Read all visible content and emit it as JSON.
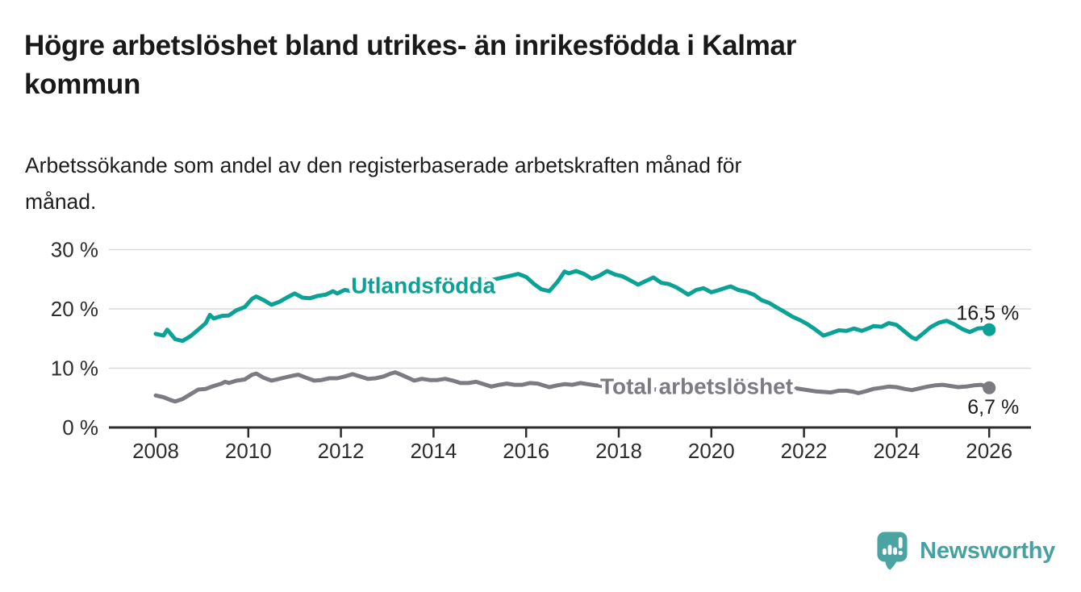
{
  "header": {
    "title_lines": [
      "Högre arbetslöshet bland utrikes- än inrikesfödda i Kalmar",
      "kommun"
    ],
    "subtitle_lines": [
      "Arbetssökande som andel av den registerbaserade arbetskraften månad för",
      "månad."
    ]
  },
  "branding": {
    "logo_text": "Newsworthy",
    "logo_color": "#4ba4a2"
  },
  "chart_data": {
    "type": "line",
    "title": "Högre arbetslöshet bland utrikes- än inrikesfödda i Kalmar kommun",
    "subtitle": "Arbetssökande som andel av den registerbaserade arbetskraften månad för månad.",
    "grid": "horizontal-only",
    "legend_position": "inline-on-line",
    "x_axis": {
      "ticks": [
        2008,
        2010,
        2012,
        2014,
        2016,
        2018,
        2020,
        2022,
        2024,
        2026
      ],
      "tick_labels": [
        "2008",
        "2010",
        "2012",
        "2014",
        "2016",
        "2018",
        "2020",
        "2022",
        "2024",
        "2026"
      ],
      "range": [
        2007.0,
        2026.9
      ]
    },
    "y_axis": {
      "unit": "%",
      "ticks": [
        0,
        10,
        20,
        30
      ],
      "tick_labels": [
        "0 %",
        "10 %",
        "20 %",
        "30 %"
      ],
      "range": [
        0,
        32
      ]
    },
    "series": [
      {
        "id": "utlandsfodda",
        "name": "Utlandsfödda",
        "color": "#0aa294",
        "end_value": 16.5,
        "end_label": "16,5 %",
        "end_label_dy": -12,
        "label_at": [
          2012.22,
          23.9
        ],
        "points": [
          [
            2008.0,
            15.8
          ],
          [
            2008.17,
            15.5
          ],
          [
            2008.25,
            16.5
          ],
          [
            2008.42,
            14.9
          ],
          [
            2008.58,
            14.6
          ],
          [
            2008.75,
            15.4
          ],
          [
            2008.92,
            16.5
          ],
          [
            2009.08,
            17.6
          ],
          [
            2009.17,
            19.0
          ],
          [
            2009.25,
            18.4
          ],
          [
            2009.42,
            18.8
          ],
          [
            2009.58,
            18.9
          ],
          [
            2009.75,
            19.8
          ],
          [
            2009.92,
            20.3
          ],
          [
            2010.08,
            21.7
          ],
          [
            2010.17,
            22.1
          ],
          [
            2010.33,
            21.5
          ],
          [
            2010.5,
            20.7
          ],
          [
            2010.67,
            21.2
          ],
          [
            2010.83,
            21.9
          ],
          [
            2011.0,
            22.6
          ],
          [
            2011.17,
            21.9
          ],
          [
            2011.33,
            21.8
          ],
          [
            2011.5,
            22.2
          ],
          [
            2011.67,
            22.4
          ],
          [
            2011.83,
            23.0
          ],
          [
            2011.92,
            22.6
          ],
          [
            2012.08,
            23.2
          ],
          [
            2012.25,
            23.0
          ],
          [
            2012.42,
            23.6
          ],
          [
            2012.58,
            23.3
          ],
          [
            2012.75,
            24.0
          ],
          [
            2012.92,
            24.5
          ],
          [
            2013.08,
            24.6
          ],
          [
            2013.25,
            24.3
          ],
          [
            2013.42,
            23.4
          ],
          [
            2013.5,
            23.1
          ],
          [
            2013.67,
            23.9
          ],
          [
            2013.83,
            23.6
          ],
          [
            2014.0,
            24.1
          ],
          [
            2014.17,
            24.3
          ],
          [
            2014.33,
            24.0
          ],
          [
            2014.5,
            24.4
          ],
          [
            2014.67,
            24.6
          ],
          [
            2014.83,
            24.9
          ],
          [
            2015.0,
            25.1
          ],
          [
            2015.17,
            24.8
          ],
          [
            2015.33,
            25.0
          ],
          [
            2015.5,
            25.3
          ],
          [
            2015.67,
            25.6
          ],
          [
            2015.83,
            25.9
          ],
          [
            2016.0,
            25.4
          ],
          [
            2016.17,
            24.2
          ],
          [
            2016.33,
            23.3
          ],
          [
            2016.5,
            23.0
          ],
          [
            2016.67,
            24.5
          ],
          [
            2016.83,
            26.3
          ],
          [
            2016.92,
            26.0
          ],
          [
            2017.08,
            26.4
          ],
          [
            2017.25,
            25.9
          ],
          [
            2017.42,
            25.1
          ],
          [
            2017.58,
            25.6
          ],
          [
            2017.75,
            26.4
          ],
          [
            2017.92,
            25.8
          ],
          [
            2018.08,
            25.5
          ],
          [
            2018.25,
            24.8
          ],
          [
            2018.42,
            24.1
          ],
          [
            2018.58,
            24.7
          ],
          [
            2018.75,
            25.3
          ],
          [
            2018.92,
            24.4
          ],
          [
            2019.08,
            24.2
          ],
          [
            2019.25,
            23.6
          ],
          [
            2019.42,
            22.8
          ],
          [
            2019.5,
            22.4
          ],
          [
            2019.67,
            23.2
          ],
          [
            2019.83,
            23.5
          ],
          [
            2020.0,
            22.8
          ],
          [
            2020.17,
            23.2
          ],
          [
            2020.33,
            23.6
          ],
          [
            2020.42,
            23.8
          ],
          [
            2020.58,
            23.2
          ],
          [
            2020.75,
            22.9
          ],
          [
            2020.92,
            22.4
          ],
          [
            2021.08,
            21.5
          ],
          [
            2021.25,
            21.0
          ],
          [
            2021.42,
            20.2
          ],
          [
            2021.58,
            19.5
          ],
          [
            2021.75,
            18.7
          ],
          [
            2021.92,
            18.1
          ],
          [
            2022.08,
            17.4
          ],
          [
            2022.25,
            16.5
          ],
          [
            2022.42,
            15.5
          ],
          [
            2022.58,
            15.9
          ],
          [
            2022.75,
            16.4
          ],
          [
            2022.92,
            16.3
          ],
          [
            2023.08,
            16.7
          ],
          [
            2023.25,
            16.3
          ],
          [
            2023.42,
            16.8
          ],
          [
            2023.5,
            17.1
          ],
          [
            2023.67,
            17.0
          ],
          [
            2023.83,
            17.6
          ],
          [
            2024.0,
            17.3
          ],
          [
            2024.17,
            16.2
          ],
          [
            2024.33,
            15.2
          ],
          [
            2024.42,
            14.9
          ],
          [
            2024.58,
            15.9
          ],
          [
            2024.75,
            17.0
          ],
          [
            2024.92,
            17.7
          ],
          [
            2025.08,
            18.0
          ],
          [
            2025.25,
            17.4
          ],
          [
            2025.42,
            16.6
          ],
          [
            2025.58,
            16.1
          ],
          [
            2025.75,
            16.7
          ],
          [
            2025.92,
            16.8
          ],
          [
            2026.0,
            16.5
          ]
        ]
      },
      {
        "id": "total",
        "name": "Total arbetslöshet",
        "color": "#7c7b81",
        "end_value": 6.7,
        "end_label": "6,7 %",
        "end_label_dy": 32,
        "label_at": [
          2017.6,
          6.9
        ],
        "points": [
          [
            2008.0,
            5.4
          ],
          [
            2008.17,
            5.1
          ],
          [
            2008.33,
            4.6
          ],
          [
            2008.42,
            4.4
          ],
          [
            2008.58,
            4.8
          ],
          [
            2008.75,
            5.6
          ],
          [
            2008.92,
            6.4
          ],
          [
            2009.08,
            6.5
          ],
          [
            2009.25,
            7.0
          ],
          [
            2009.42,
            7.4
          ],
          [
            2009.5,
            7.7
          ],
          [
            2009.58,
            7.5
          ],
          [
            2009.75,
            7.9
          ],
          [
            2009.92,
            8.1
          ],
          [
            2010.08,
            8.9
          ],
          [
            2010.17,
            9.1
          ],
          [
            2010.33,
            8.4
          ],
          [
            2010.5,
            7.9
          ],
          [
            2010.67,
            8.2
          ],
          [
            2010.83,
            8.5
          ],
          [
            2011.0,
            8.8
          ],
          [
            2011.08,
            8.9
          ],
          [
            2011.25,
            8.4
          ],
          [
            2011.42,
            7.9
          ],
          [
            2011.58,
            8.0
          ],
          [
            2011.75,
            8.3
          ],
          [
            2011.92,
            8.3
          ],
          [
            2012.08,
            8.6
          ],
          [
            2012.25,
            9.0
          ],
          [
            2012.42,
            8.6
          ],
          [
            2012.58,
            8.2
          ],
          [
            2012.75,
            8.3
          ],
          [
            2012.92,
            8.6
          ],
          [
            2013.08,
            9.1
          ],
          [
            2013.17,
            9.3
          ],
          [
            2013.33,
            8.8
          ],
          [
            2013.5,
            8.2
          ],
          [
            2013.58,
            7.9
          ],
          [
            2013.75,
            8.2
          ],
          [
            2013.92,
            8.0
          ],
          [
            2014.08,
            8.0
          ],
          [
            2014.25,
            8.2
          ],
          [
            2014.42,
            7.9
          ],
          [
            2014.58,
            7.5
          ],
          [
            2014.75,
            7.5
          ],
          [
            2014.92,
            7.7
          ],
          [
            2015.08,
            7.3
          ],
          [
            2015.25,
            6.9
          ],
          [
            2015.42,
            7.2
          ],
          [
            2015.58,
            7.4
          ],
          [
            2015.75,
            7.2
          ],
          [
            2015.92,
            7.2
          ],
          [
            2016.08,
            7.5
          ],
          [
            2016.25,
            7.4
          ],
          [
            2016.42,
            7.0
          ],
          [
            2016.5,
            6.8
          ],
          [
            2016.67,
            7.1
          ],
          [
            2016.83,
            7.3
          ],
          [
            2017.0,
            7.2
          ],
          [
            2017.17,
            7.5
          ],
          [
            2017.33,
            7.3
          ],
          [
            2017.5,
            7.1
          ],
          [
            2017.67,
            7.0
          ],
          [
            2017.83,
            6.9
          ],
          [
            2018.0,
            7.0
          ],
          [
            2018.25,
            6.8
          ],
          [
            2018.5,
            6.5
          ],
          [
            2018.75,
            6.4
          ],
          [
            2019.0,
            6.5
          ],
          [
            2019.25,
            6.3
          ],
          [
            2019.5,
            6.2
          ],
          [
            2019.75,
            6.4
          ],
          [
            2020.0,
            6.6
          ],
          [
            2020.25,
            7.6
          ],
          [
            2020.5,
            8.0
          ],
          [
            2020.75,
            7.8
          ],
          [
            2021.0,
            7.6
          ],
          [
            2021.25,
            7.3
          ],
          [
            2021.5,
            7.0
          ],
          [
            2021.75,
            6.7
          ],
          [
            2022.0,
            6.4
          ],
          [
            2022.25,
            6.1
          ],
          [
            2022.42,
            6.0
          ],
          [
            2022.58,
            5.9
          ],
          [
            2022.75,
            6.2
          ],
          [
            2022.92,
            6.2
          ],
          [
            2023.08,
            6.0
          ],
          [
            2023.17,
            5.8
          ],
          [
            2023.33,
            6.1
          ],
          [
            2023.5,
            6.5
          ],
          [
            2023.67,
            6.7
          ],
          [
            2023.83,
            6.9
          ],
          [
            2024.0,
            6.8
          ],
          [
            2024.17,
            6.5
          ],
          [
            2024.33,
            6.3
          ],
          [
            2024.5,
            6.6
          ],
          [
            2024.67,
            6.9
          ],
          [
            2024.83,
            7.1
          ],
          [
            2025.0,
            7.2
          ],
          [
            2025.17,
            7.0
          ],
          [
            2025.33,
            6.8
          ],
          [
            2025.5,
            6.9
          ],
          [
            2025.67,
            7.1
          ],
          [
            2025.83,
            7.2
          ],
          [
            2026.0,
            6.7
          ]
        ]
      }
    ]
  }
}
